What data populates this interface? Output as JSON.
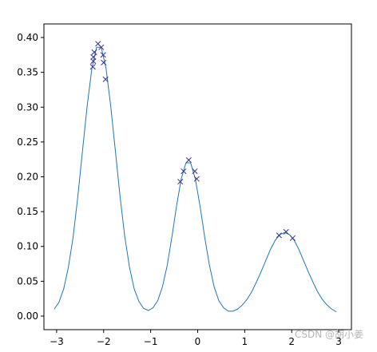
{
  "chart_data": {
    "type": "line",
    "xlim": [
      -3.27,
      3.27
    ],
    "ylim": [
      -0.0195,
      0.4195
    ],
    "xticks": [
      {
        "value": -3,
        "label": "−3"
      },
      {
        "value": -2,
        "label": "−2"
      },
      {
        "value": -1,
        "label": "−1"
      },
      0,
      1,
      2,
      3
    ],
    "yticks": [
      {
        "value": 0,
        "label": "0.00"
      },
      {
        "value": 0.05,
        "label": "0.05"
      },
      {
        "value": 0.1,
        "label": "0.10"
      },
      {
        "value": 0.15,
        "label": "0.15"
      },
      {
        "value": 0.2,
        "label": "0.20"
      },
      {
        "value": 0.25,
        "label": "0.25"
      },
      {
        "value": 0.3,
        "label": "0.30"
      },
      {
        "value": 0.35,
        "label": "0.35"
      },
      {
        "value": 0.4,
        "label": "0.40"
      }
    ],
    "grid": false,
    "series": [
      {
        "type": "line",
        "color": "#1f77b4",
        "x": [
          -3.05,
          -2.95,
          -2.85,
          -2.75,
          -2.65,
          -2.55,
          -2.45,
          -2.35,
          -2.25,
          -2.15,
          -2.05,
          -1.95,
          -1.85,
          -1.75,
          -1.65,
          -1.55,
          -1.45,
          -1.35,
          -1.25,
          -1.15,
          -1.05,
          -0.95,
          -0.85,
          -0.75,
          -0.65,
          -0.55,
          -0.45,
          -0.35,
          -0.25,
          -0.15,
          -0.05,
          0.05,
          0.15,
          0.25,
          0.35,
          0.45,
          0.55,
          0.65,
          0.75,
          0.85,
          0.95,
          1.05,
          1.15,
          1.25,
          1.35,
          1.45,
          1.55,
          1.65,
          1.75,
          1.85,
          1.95,
          2.05,
          2.15,
          2.25,
          2.35,
          2.45,
          2.55,
          2.65,
          2.75,
          2.85,
          2.95
        ],
        "values": [
          0.01,
          0.02,
          0.039,
          0.07,
          0.113,
          0.171,
          0.237,
          0.302,
          0.356,
          0.386,
          0.386,
          0.356,
          0.302,
          0.237,
          0.171,
          0.114,
          0.07,
          0.039,
          0.021,
          0.011,
          0.008,
          0.012,
          0.022,
          0.042,
          0.072,
          0.113,
          0.158,
          0.197,
          0.22,
          0.22,
          0.197,
          0.158,
          0.113,
          0.073,
          0.042,
          0.022,
          0.012,
          0.007,
          0.007,
          0.01,
          0.016,
          0.024,
          0.035,
          0.049,
          0.064,
          0.08,
          0.096,
          0.109,
          0.117,
          0.12,
          0.117,
          0.109,
          0.096,
          0.08,
          0.064,
          0.049,
          0.035,
          0.024,
          0.016,
          0.01,
          0.006
        ]
      },
      {
        "type": "scatter",
        "marker": "x",
        "color": "#3b2f8f",
        "x": [
          -2.12,
          -2.05,
          -2.2,
          -2.01,
          -2.22,
          -2.22,
          -2.0,
          -2.23,
          -1.96,
          -0.19,
          -0.3,
          -0.06,
          -0.37,
          -0.02,
          1.88,
          1.73,
          2.02
        ],
        "values": [
          0.391,
          0.386,
          0.379,
          0.375,
          0.372,
          0.366,
          0.364,
          0.358,
          0.34,
          0.224,
          0.208,
          0.208,
          0.193,
          0.197,
          0.121,
          0.116,
          0.112
        ]
      }
    ]
  },
  "watermark": "CSDN @胡小姜"
}
